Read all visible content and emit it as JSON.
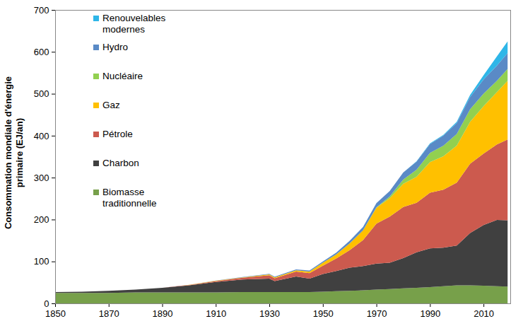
{
  "chart_data": {
    "type": "area",
    "stacked": true,
    "y_label": "Consommation mondiale d'énergie primaire (EJ/an)",
    "legend": "top-left",
    "grid": false,
    "xlim": [
      1850,
      2020
    ],
    "xticks": [
      1850,
      1870,
      1890,
      1910,
      1930,
      1950,
      1970,
      1990,
      2010
    ],
    "ylim": [
      0,
      700
    ],
    "yticks": [
      0,
      100,
      200,
      300,
      400,
      500,
      600,
      700
    ],
    "x": [
      1850,
      1860,
      1870,
      1880,
      1890,
      1900,
      1910,
      1920,
      1930,
      1932,
      1940,
      1945,
      1950,
      1955,
      1960,
      1965,
      1970,
      1975,
      1980,
      1985,
      1990,
      1995,
      2000,
      2005,
      2010,
      2015,
      2019
    ],
    "series": [
      {
        "name": "Biomasse traditionnelle",
        "color": "#77a04a",
        "values": [
          25,
          25,
          25,
          26,
          26,
          26,
          26,
          27,
          27,
          27,
          27,
          27,
          28,
          29,
          30,
          31,
          33,
          34,
          36,
          37,
          39,
          41,
          43,
          43,
          42,
          41,
          40
        ]
      },
      {
        "name": "Charbon",
        "color": "#404040",
        "values": [
          2,
          3,
          5,
          7,
          11,
          17,
          25,
          30,
          32,
          26,
          37,
          32,
          42,
          48,
          55,
          58,
          62,
          63,
          72,
          85,
          92,
          92,
          95,
          125,
          145,
          158,
          158
        ]
      },
      {
        "name": "Pétrole",
        "color": "#cc5a4e",
        "values": [
          0,
          0,
          0,
          0,
          0.3,
          1,
          2,
          4,
          8,
          7,
          12,
          13,
          20,
          30,
          42,
          62,
          95,
          110,
          122,
          118,
          133,
          138,
          150,
          165,
          170,
          180,
          193
        ]
      },
      {
        "name": "Gaz",
        "color": "#ffc000",
        "values": [
          0,
          0,
          0,
          0,
          0,
          0.3,
          1,
          1,
          2,
          2,
          3,
          4,
          7,
          10,
          16,
          23,
          38,
          44,
          55,
          62,
          73,
          80,
          88,
          100,
          113,
          125,
          140
        ]
      },
      {
        "name": "Nucléaire",
        "color": "#92d050",
        "values": [
          0,
          0,
          0,
          0,
          0,
          0,
          0,
          0,
          0,
          0,
          0,
          0,
          0,
          0,
          0.1,
          0.3,
          1,
          4,
          10,
          17,
          22,
          25,
          28,
          30,
          30,
          27,
          28
        ]
      },
      {
        "name": "Hydro",
        "color": "#5a8ac6",
        "values": [
          0,
          0,
          0,
          0,
          0,
          0,
          0.5,
          1,
          1.5,
          1.5,
          2,
          2.5,
          3,
          4,
          6,
          8,
          10,
          13,
          17,
          19,
          21,
          24,
          26,
          29,
          34,
          36,
          38
        ]
      },
      {
        "name": "Renouvelables modernes",
        "color": "#2eb6e8",
        "values": [
          0,
          0,
          0,
          0,
          0,
          0,
          0,
          0,
          0,
          0,
          0,
          0,
          0,
          0,
          0,
          0,
          0,
          0,
          0,
          1,
          1.5,
          2,
          3,
          5,
          10,
          22,
          28
        ]
      }
    ]
  }
}
